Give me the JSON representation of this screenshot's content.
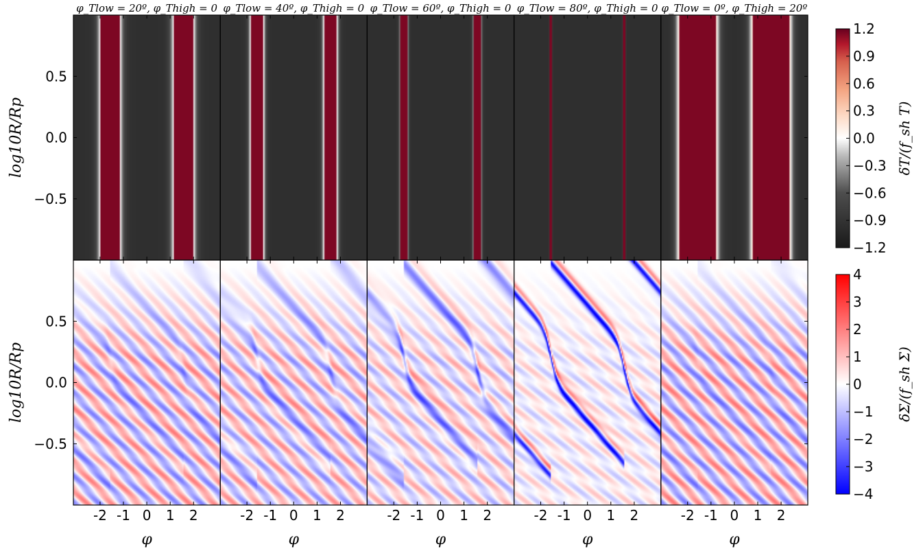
{
  "chart_data": {
    "type": "heatmap",
    "grid": false,
    "panel_titles": [
      "φ_Tlow = 20º, φ_Thigh = 0",
      "φ_Tlow = 40º, φ_Thigh = 0",
      "φ_Tlow = 60º, φ_Thigh = 0",
      "φ_Tlow = 80º, φ_Thigh = 0",
      "φ_Tlow = 0º, φ_Thigh = 20º"
    ],
    "x": {
      "label": "φ",
      "range": [
        -3.14159,
        3.14159
      ],
      "ticks": [
        -2,
        -1,
        0,
        1,
        2
      ],
      "tick_labels": [
        "-2",
        "-1",
        "0",
        "1",
        "2"
      ]
    },
    "y": {
      "label": "log10R/Rp",
      "range": [
        -1.0,
        1.0
      ],
      "ticks": [
        -0.5,
        0.0,
        0.5
      ],
      "tick_labels": [
        "−0.5",
        "0.0",
        "0.5"
      ]
    },
    "temperature_row": {
      "colorbar_label": "δT/(f_sh T)",
      "colormap": "RdGy_r",
      "vmin": -1.2,
      "vmax": 1.2,
      "colorbar_ticks": [
        "1.2",
        "0.9",
        "0.6",
        "0.3",
        "0.0",
        "−0.3",
        "−0.6",
        "−0.9",
        "−1.2"
      ],
      "colors": {
        "low": "#1a1a1a",
        "mid": "#ffffff",
        "high": "#67001f"
      },
      "panels": [
        {
          "hot_phases": [
            -1.57,
            1.57
          ],
          "hot_halfwidth": 0.4,
          "transition": 0.55
        },
        {
          "hot_phases": [
            -1.57,
            1.57
          ],
          "hot_halfwidth": 0.26,
          "transition": 0.35
        },
        {
          "hot_phases": [
            -1.57,
            1.57
          ],
          "hot_halfwidth": 0.14,
          "transition": 0.18
        },
        {
          "hot_phases": [
            -1.57,
            1.57
          ],
          "hot_halfwidth": 0.04,
          "transition": 0.06
        },
        {
          "hot_phases": [
            -1.57,
            1.57
          ],
          "hot_halfwidth": 0.8,
          "transition": 0.55
        }
      ]
    },
    "density_row": {
      "colorbar_label": "δΣ/(f_sh Σ)",
      "colormap": "bwr",
      "vmin": -4,
      "vmax": 4,
      "colorbar_ticks": [
        "4",
        "3",
        "2",
        "1",
        "0",
        "−1",
        "−2",
        "−3",
        "−4"
      ],
      "colors": {
        "low": "#0000ff",
        "mid": "#ffffff",
        "high": "#ff0000"
      },
      "panels": [
        {
          "stripe_amplitude": 1.7,
          "spiral_amplitude": 0.8
        },
        {
          "stripe_amplitude": 1.5,
          "spiral_amplitude": 1.4
        },
        {
          "stripe_amplitude": 1.1,
          "spiral_amplitude": 2.4
        },
        {
          "stripe_amplitude": 0.6,
          "spiral_amplitude": 4.0
        },
        {
          "stripe_amplitude": 1.8,
          "spiral_amplitude": 0.5
        }
      ]
    }
  }
}
